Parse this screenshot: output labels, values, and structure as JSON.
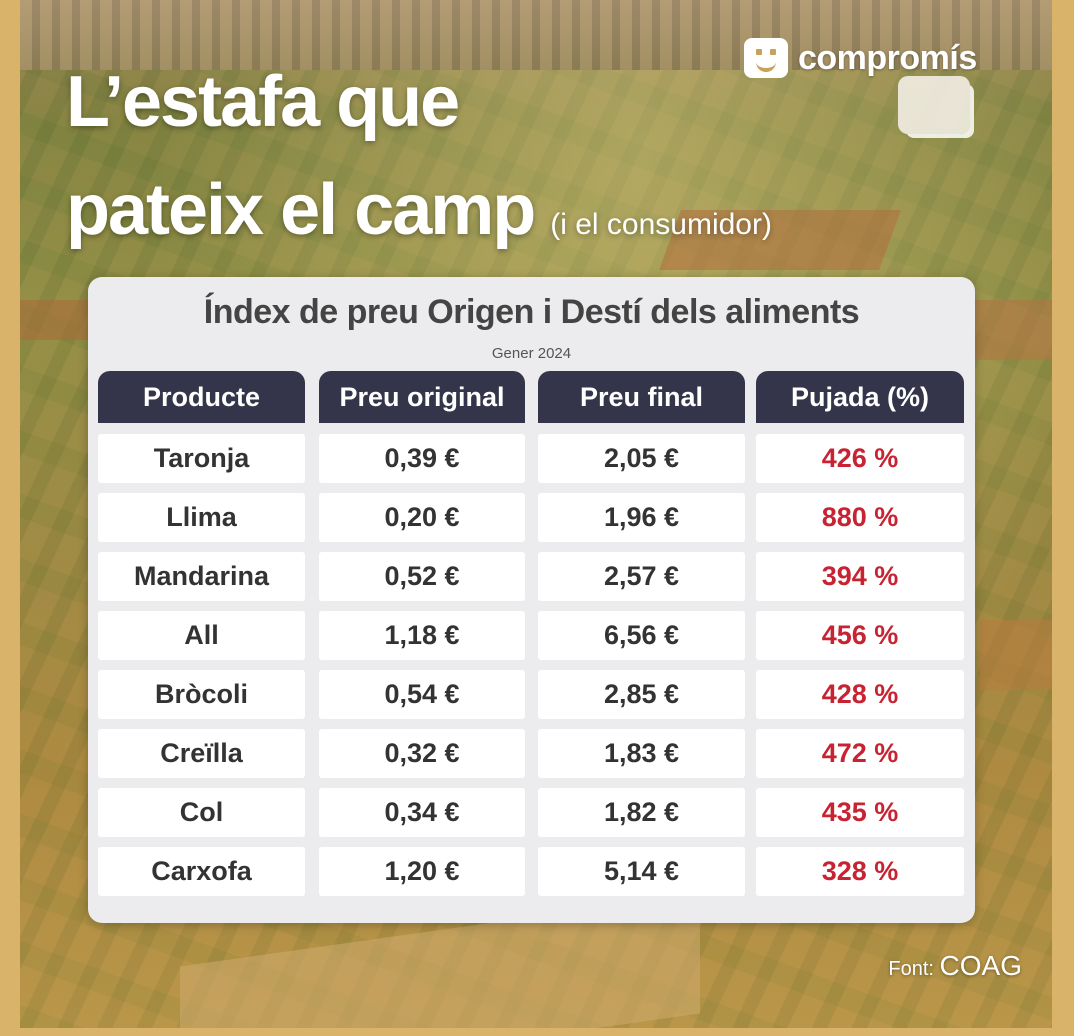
{
  "headline": {
    "line1": "L’estafa que",
    "line2": "pateix el camp",
    "aside": "(i el consumidor)"
  },
  "brand": {
    "name": "compromís"
  },
  "table": {
    "title": "Índex de preu Origen i Destí dels aliments",
    "subtitle": "Gener 2024",
    "columns": [
      "Producte",
      "Preu original",
      "Preu final",
      "Pujada (%)"
    ],
    "rows": [
      [
        "Taronja",
        "0,39 €",
        "2,05 €",
        "426 %"
      ],
      [
        "Llima",
        "0,20 €",
        "1,96 €",
        "880 %"
      ],
      [
        "Mandarina",
        "0,52 €",
        "2,57 €",
        "394 %"
      ],
      [
        "All",
        "1,18 €",
        "6,56 €",
        "456 %"
      ],
      [
        "Bròcoli",
        "0,54 €",
        "2,85 €",
        "428 %"
      ],
      [
        "Creïlla",
        "0,32 €",
        "1,83 €",
        "472 %"
      ],
      [
        "Col",
        "0,34 €",
        "1,82 €",
        "435 %"
      ],
      [
        "Carxofa",
        "1,20 €",
        "5,14 €",
        "328 %"
      ]
    ]
  },
  "source": {
    "label": "Font:",
    "value": "COAG"
  },
  "colors": {
    "header_bg": "#34354a",
    "percent_red": "#c82332",
    "card_bg": "#ecebed"
  },
  "icons": {
    "logo": "smiley-face-icon",
    "decor": "rounded-square-icon"
  }
}
